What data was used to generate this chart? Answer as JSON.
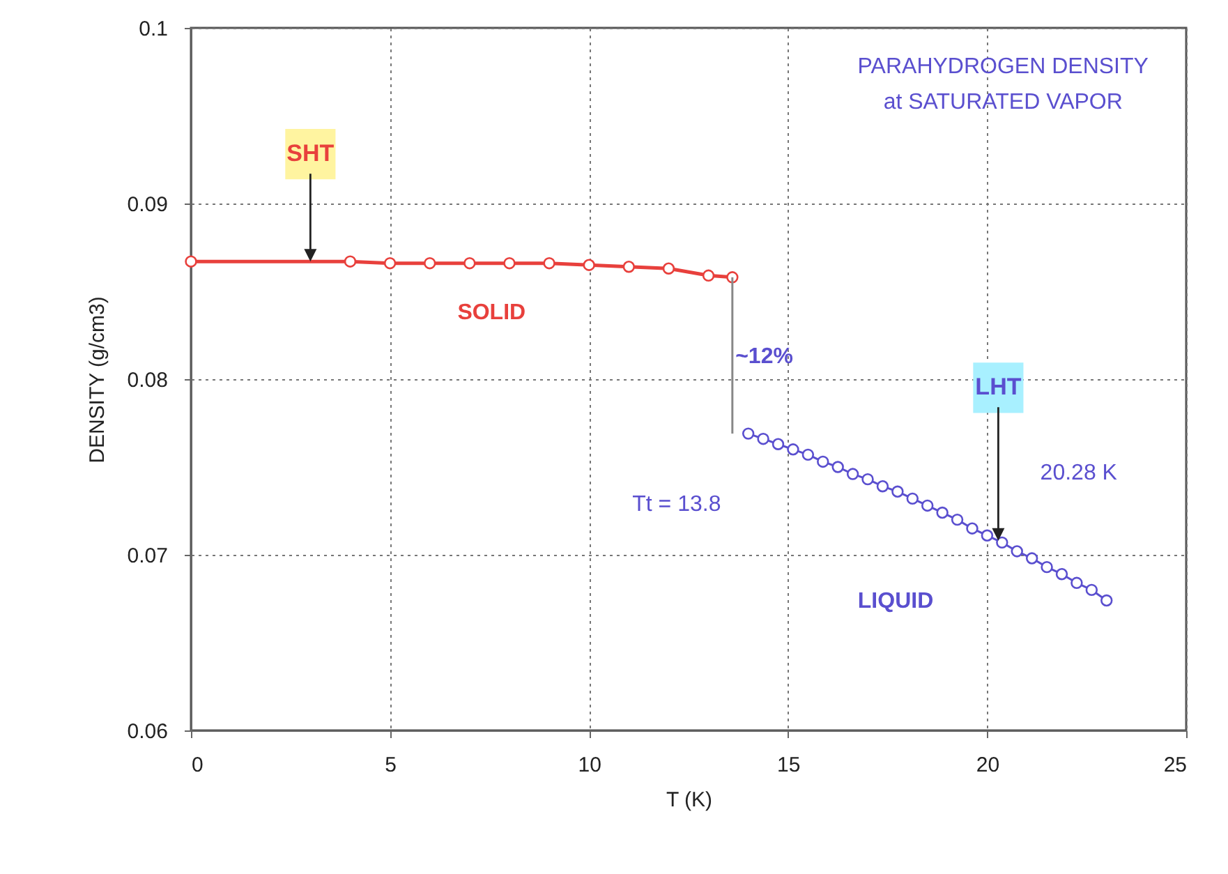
{
  "chart_data": {
    "type": "line",
    "xlabel": "T (K)",
    "ylabel": "DENSITY (g/cm3)",
    "xlim": [
      0,
      25
    ],
    "xticks": [
      0,
      5,
      10,
      15,
      20,
      25
    ],
    "ylim": [
      0.06,
      0.1
    ],
    "yticks": [
      0.06,
      0.07,
      0.08,
      0.09,
      0.1
    ],
    "grid": true,
    "line_style": "solid",
    "series": [
      {
        "color": "#e8403c",
        "marker": "circle",
        "x": [
          0,
          4,
          5,
          6,
          7,
          8,
          9,
          10,
          11,
          12,
          13,
          13.6
        ],
        "values": [
          0.0867,
          0.0867,
          0.0866,
          0.0866,
          0.0866,
          0.0866,
          0.0866,
          0.0865,
          0.0864,
          0.0863,
          0.0859,
          0.0858
        ]
      },
      {
        "color": "#5a4fcf",
        "marker": "circle",
        "x": [
          14,
          14.375,
          14.75,
          15.125,
          15.5,
          15.875,
          16.25,
          16.625,
          17,
          17.375,
          17.75,
          18.125,
          18.5,
          18.875,
          19.25,
          19.625,
          20,
          20.375,
          20.75,
          21.125,
          21.5,
          21.875,
          22.25,
          22.625,
          23
        ],
        "values": [
          0.0769,
          0.0766,
          0.0763,
          0.076,
          0.0757,
          0.0753,
          0.075,
          0.0746,
          0.0743,
          0.0739,
          0.0736,
          0.0732,
          0.0728,
          0.0724,
          0.072,
          0.0715,
          0.0711,
          0.0707,
          0.0702,
          0.0698,
          0.0693,
          0.0689,
          0.0684,
          0.068,
          0.0674
        ]
      },
      {
        "color": "#888888",
        "marker": "none",
        "x": [
          13.6,
          13.6
        ],
        "values": [
          0.0858,
          0.0769
        ]
      }
    ],
    "annotations": [
      "SHT",
      "LHT",
      "20.28 K",
      "SOLID",
      "LIQUID",
      "~12%",
      "Tt = 13.8",
      "PARAHYDROGEN DENSITY",
      "at SATURATED VAPOR"
    ]
  }
}
